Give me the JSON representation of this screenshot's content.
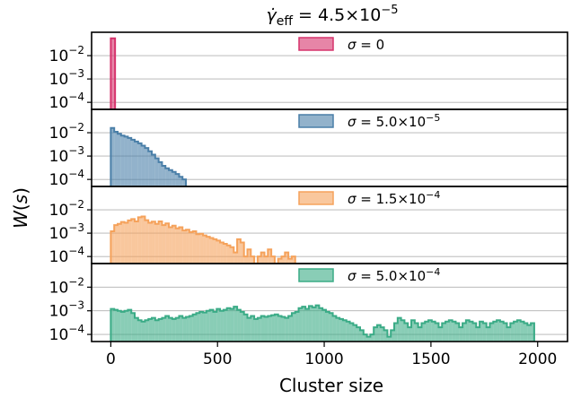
{
  "chart_data": {
    "type": "histogram",
    "title": "γ̇_eff = 4.5×10^-5",
    "xlabel": "Cluster size",
    "ylabel": "W(s)",
    "xlim": [
      -90,
      2140
    ],
    "xticks": [
      0,
      500,
      1000,
      1500,
      2000
    ],
    "yscale": "log",
    "ylim": [
      5e-05,
      0.1
    ],
    "yticks": [
      0.0001,
      0.001,
      0.01
    ],
    "ytick_labels": [
      "10⁻⁴",
      "10⁻³",
      "10⁻²"
    ],
    "grid": "horizontal",
    "legend_placement": "upper-center",
    "bin_width": 16,
    "panels": [
      {
        "legend": "σ = 0",
        "color": "#d6336c",
        "x0": 0,
        "values": [
          0.055
        ]
      },
      {
        "legend": "σ = 5.0×10⁻⁵",
        "color": "#4a7fa8",
        "x0": 0,
        "values": [
          0.016,
          0.011,
          0.009,
          0.0075,
          0.0068,
          0.006,
          0.005,
          0.0042,
          0.0035,
          0.0028,
          0.0022,
          0.0016,
          0.00115,
          0.0008,
          0.00055,
          0.00038,
          0.0003,
          0.00025,
          0.00021,
          0.00017,
          0.00013,
          0.0001
        ]
      },
      {
        "legend": "σ = 1.5×10⁻⁴",
        "color": "#f5a25b",
        "x0": 0,
        "values": [
          0.0012,
          0.0022,
          0.0025,
          0.003,
          0.0028,
          0.0035,
          0.004,
          0.0032,
          0.0048,
          0.0052,
          0.0036,
          0.0028,
          0.0031,
          0.0025,
          0.0032,
          0.0022,
          0.0026,
          0.0018,
          0.0021,
          0.0016,
          0.0018,
          0.0013,
          0.0014,
          0.0011,
          0.0012,
          0.0009,
          0.00095,
          0.0008,
          0.0007,
          0.00062,
          0.00055,
          0.00048,
          0.0004,
          0.00035,
          0.0003,
          0.00025,
          0.00015,
          0.00055,
          0.0004,
          0.0001,
          0.0002,
          0.0001,
          5e-05,
          0.0001,
          0.00015,
          0.0001,
          0.0002,
          0.0001,
          5e-05,
          8e-05,
          0.0001,
          0.00015,
          8e-05,
          0.0001
        ]
      },
      {
        "legend": "σ = 5.0×10⁻⁴",
        "color": "#3aab86",
        "x0": 0,
        "values": [
          0.0012,
          0.0011,
          0.001,
          0.0009,
          0.001,
          0.0011,
          0.0008,
          0.0005,
          0.0004,
          0.00035,
          0.0004,
          0.00045,
          0.0005,
          0.0004,
          0.00045,
          0.0005,
          0.0006,
          0.0005,
          0.00045,
          0.0005,
          0.0006,
          0.0005,
          0.00055,
          0.0006,
          0.0007,
          0.0008,
          0.0009,
          0.00085,
          0.001,
          0.0011,
          0.0009,
          0.0012,
          0.001,
          0.0011,
          0.0013,
          0.0012,
          0.0015,
          0.0011,
          0.0009,
          0.0007,
          0.0005,
          0.0006,
          0.00045,
          0.0005,
          0.0006,
          0.00055,
          0.0006,
          0.00065,
          0.0007,
          0.0006,
          0.00055,
          0.0005,
          0.0006,
          0.0008,
          0.0009,
          0.0013,
          0.0015,
          0.0012,
          0.0016,
          0.0014,
          0.0017,
          0.0013,
          0.0011,
          0.0009,
          0.0008,
          0.0006,
          0.0005,
          0.00045,
          0.0004,
          0.00035,
          0.0003,
          0.00025,
          0.0002,
          0.00015,
          0.0001,
          8e-05,
          0.0001,
          0.0002,
          0.00025,
          0.0002,
          0.00015,
          8e-05,
          0.00015,
          0.0003,
          0.0005,
          0.0004,
          0.0003,
          0.0002,
          0.0004,
          0.0003,
          0.0002,
          0.0003,
          0.00035,
          0.0004,
          0.00035,
          0.0003,
          0.0002,
          0.0003,
          0.00035,
          0.0004,
          0.00035,
          0.0003,
          0.0002,
          0.0003,
          0.0004,
          0.00035,
          0.0003,
          0.0002,
          0.00035,
          0.0003,
          0.0002,
          0.0003,
          0.00035,
          0.0004,
          0.00035,
          0.0003,
          0.0002,
          0.0003,
          0.00035,
          0.0004,
          0.00035,
          0.0003,
          0.00025,
          0.0003
        ]
      }
    ]
  }
}
